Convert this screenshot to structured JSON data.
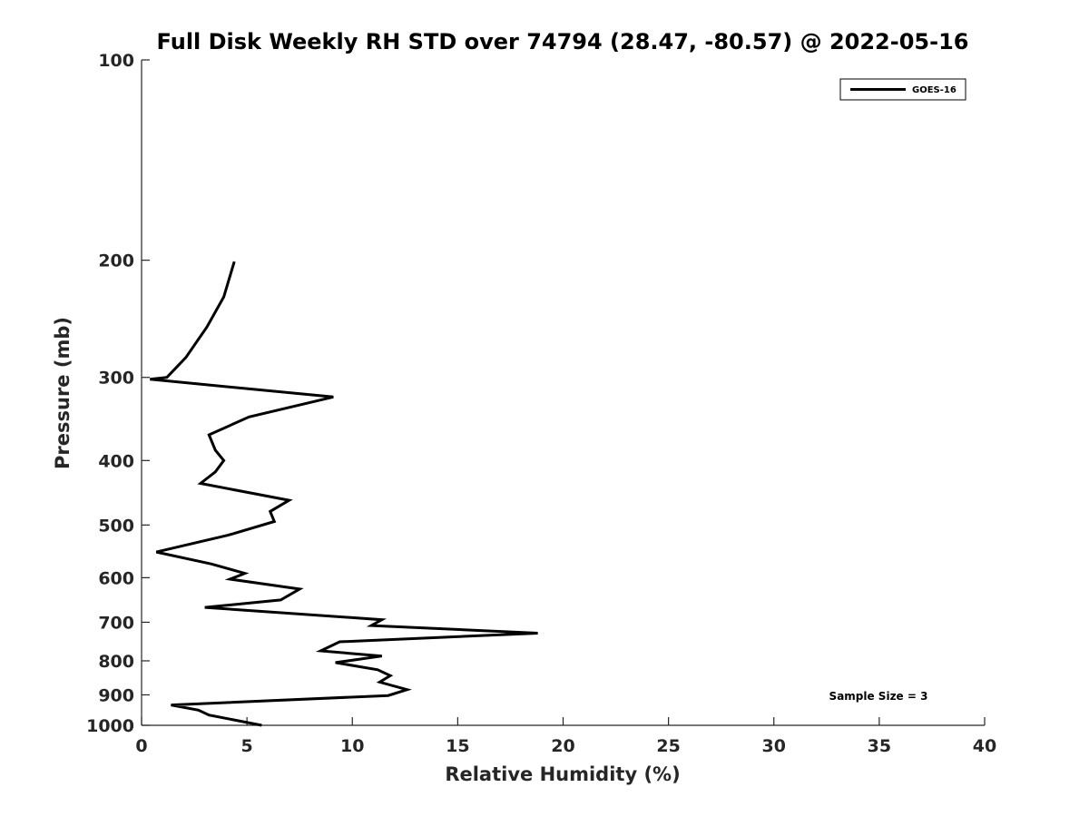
{
  "chart_data": {
    "type": "line",
    "title": "Full Disk Weekly RH STD over 74794 (28.47, -80.57) @ 2022-05-16",
    "xlabel": "Relative Humidity (%)",
    "ylabel": "Pressure (mb)",
    "xlim": [
      0,
      40
    ],
    "ylim": [
      1000,
      100
    ],
    "yscale": "log",
    "y_reversed": true,
    "grid": false,
    "legend_position": "top-right",
    "x_ticks": [
      "0",
      "5",
      "10",
      "15",
      "20",
      "25",
      "30",
      "35",
      "40"
    ],
    "y_ticks": [
      "100",
      "200",
      "300",
      "400",
      "500",
      "600",
      "700",
      "800",
      "900",
      "1000"
    ],
    "annotation": "Sample Size = 3",
    "series": [
      {
        "name": "GOES-16",
        "color": "#000000",
        "x": [
          4.4,
          3.9,
          3.1,
          2.1,
          1.2,
          0.4,
          9.1,
          5.1,
          3.2,
          3.5,
          3.9,
          3.5,
          2.8,
          7.0,
          6.1,
          6.3,
          4.1,
          0.7,
          3.3,
          4.9,
          4.2,
          7.5,
          6.6,
          3.0,
          11.4,
          10.9,
          18.8,
          9.4,
          8.5,
          11.4,
          9.2,
          11.2,
          11.8,
          11.3,
          12.6,
          11.7,
          1.4,
          2.7,
          3.2,
          5.7
        ],
        "y": [
          201,
          227,
          252,
          280,
          300,
          302,
          321,
          344,
          366,
          386,
          400,
          416,
          433,
          459,
          477,
          494,
          518,
          549,
          572,
          591,
          603,
          624,
          648,
          665,
          694,
          708,
          727,
          749,
          773,
          787,
          805,
          825,
          842,
          861,
          884,
          902,
          932,
          949,
          965,
          1000
        ]
      }
    ]
  }
}
